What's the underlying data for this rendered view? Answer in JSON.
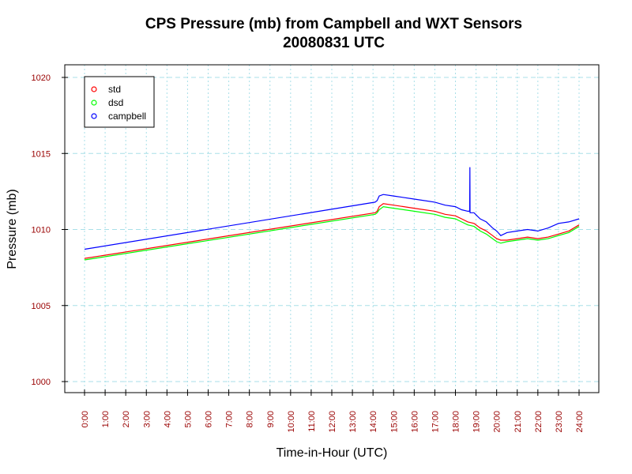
{
  "chart_data": {
    "type": "line",
    "title": "CPS Pressure (mb) from Campbell and WXT Sensors",
    "subtitle": "20080831  UTC",
    "xlabel": "Time-in-Hour (UTC)",
    "ylabel": "Pressure (mb)",
    "xlim": [
      0,
      24
    ],
    "ylim": [
      1000,
      1020
    ],
    "x_tick_labels": [
      "0:00",
      "1:00",
      "2:00",
      "3:00",
      "4:00",
      "5:00",
      "6:00",
      "7:00",
      "8:00",
      "9:00",
      "10:00",
      "11:00",
      "12:00",
      "13:00",
      "14:00",
      "15:00",
      "16:00",
      "17:00",
      "18:00",
      "19:00",
      "20:00",
      "21:00",
      "22:00",
      "23:00",
      "24:00"
    ],
    "y_ticks": [
      1000,
      1005,
      1010,
      1015,
      1020
    ],
    "y_tick_labels": [
      "1000",
      "1005",
      "1010",
      "1015",
      "1020"
    ],
    "grid": true,
    "legend_position": "top-left",
    "series": [
      {
        "name": "std",
        "color": "#ff0000",
        "x": [
          0,
          14.1,
          14.2,
          14.3,
          14.5,
          15.0,
          16.0,
          17.0,
          17.5,
          18.0,
          18.3,
          18.6,
          18.9,
          19.2,
          19.5,
          19.8,
          20.0,
          20.2,
          20.5,
          21.0,
          21.5,
          22.0,
          22.5,
          23.0,
          23.5,
          24.0
        ],
        "y": [
          1008.1,
          1011.1,
          1011.2,
          1011.5,
          1011.7,
          1011.6,
          1011.4,
          1011.2,
          1011.0,
          1010.9,
          1010.7,
          1010.5,
          1010.4,
          1010.1,
          1009.9,
          1009.6,
          1009.4,
          1009.3,
          1009.3,
          1009.4,
          1009.5,
          1009.4,
          1009.5,
          1009.7,
          1009.9,
          1010.3
        ]
      },
      {
        "name": "dsd",
        "color": "#00ff00",
        "x": [
          0,
          14.1,
          14.2,
          14.3,
          14.5,
          15.0,
          16.0,
          17.0,
          17.5,
          18.0,
          18.3,
          18.6,
          18.9,
          19.2,
          19.5,
          19.8,
          20.0,
          20.2,
          20.5,
          21.0,
          21.5,
          22.0,
          22.5,
          23.0,
          23.5,
          24.0
        ],
        "y": [
          1008.0,
          1011.0,
          1011.1,
          1011.3,
          1011.5,
          1011.4,
          1011.2,
          1011.0,
          1010.8,
          1010.7,
          1010.5,
          1010.3,
          1010.2,
          1009.9,
          1009.7,
          1009.4,
          1009.2,
          1009.1,
          1009.2,
          1009.3,
          1009.4,
          1009.3,
          1009.4,
          1009.6,
          1009.8,
          1010.2
        ]
      },
      {
        "name": "campbell",
        "color": "#0000ff",
        "x": [
          0,
          14.1,
          14.2,
          14.3,
          14.5,
          15.0,
          16.0,
          17.0,
          17.5,
          18.0,
          18.3,
          18.6,
          18.69,
          18.7,
          18.71,
          18.9,
          19.2,
          19.5,
          19.8,
          20.0,
          20.2,
          20.5,
          21.0,
          21.5,
          22.0,
          22.5,
          23.0,
          23.5,
          24.0
        ],
        "y": [
          1008.7,
          1011.8,
          1011.9,
          1012.2,
          1012.3,
          1012.2,
          1012.0,
          1011.8,
          1011.6,
          1011.5,
          1011.3,
          1011.2,
          1011.2,
          1014.1,
          1011.1,
          1011.1,
          1010.7,
          1010.5,
          1010.1,
          1009.9,
          1009.6,
          1009.8,
          1009.9,
          1010.0,
          1009.9,
          1010.1,
          1010.4,
          1010.5,
          1010.7
        ]
      }
    ]
  }
}
